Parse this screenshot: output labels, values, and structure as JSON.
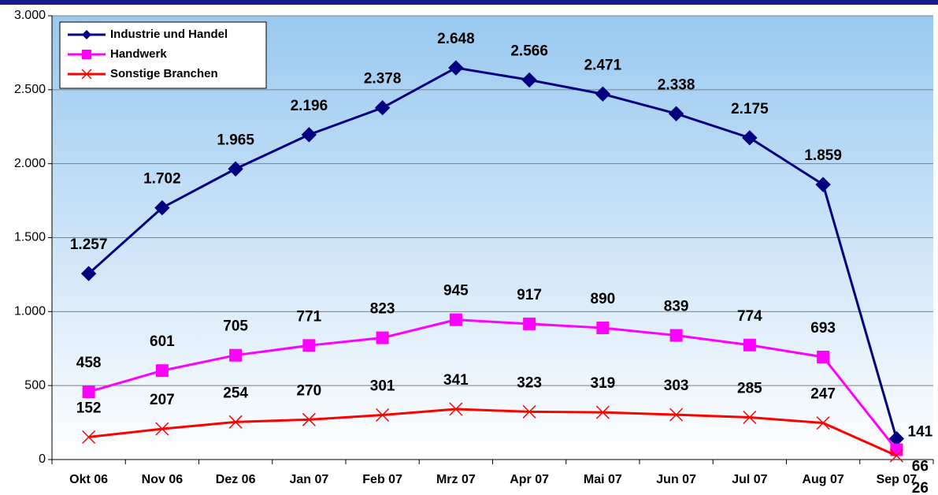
{
  "chart_data": {
    "type": "line",
    "categories": [
      "Okt 06",
      "Nov 06",
      "Dez 06",
      "Jan 07",
      "Feb 07",
      "Mrz 07",
      "Apr 07",
      "Mai 07",
      "Jun 07",
      "Jul 07",
      "Aug 07",
      "Sep 07"
    ],
    "series": [
      {
        "name": "Industrie und Handel",
        "color": "#000080",
        "marker": "diamond",
        "values": [
          1257,
          1702,
          1965,
          2196,
          2378,
          2648,
          2566,
          2471,
          2338,
          2175,
          1859,
          141
        ],
        "value_labels": [
          "1.257",
          "1.702",
          "1.965",
          "2.196",
          "2.378",
          "2.648",
          "2.566",
          "2.471",
          "2.338",
          "2.175",
          "1.859",
          "141"
        ]
      },
      {
        "name": "Handwerk",
        "color": "#ff00ff",
        "marker": "square",
        "values": [
          458,
          601,
          705,
          771,
          823,
          945,
          917,
          890,
          839,
          774,
          693,
          66
        ]
      },
      {
        "name": "Sonstige Branchen",
        "color": "#ff0000",
        "marker": "x",
        "values": [
          152,
          207,
          254,
          270,
          301,
          341,
          323,
          319,
          303,
          285,
          247,
          26
        ]
      }
    ],
    "ylim": [
      0,
      3000
    ],
    "yticks": [
      0,
      500,
      {
        "value": 1000,
        "label": "1.000"
      },
      {
        "value": 1500,
        "label": "1.500"
      },
      {
        "value": 2000,
        "label": "2.000"
      },
      {
        "value": 2500,
        "label": "2.500"
      },
      {
        "value": 3000,
        "label": "3.000"
      }
    ],
    "grid": true,
    "legend": "upper left"
  }
}
